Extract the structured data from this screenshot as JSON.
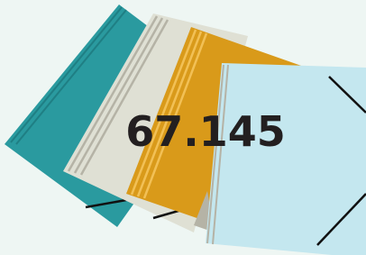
{
  "headline": "67.145"
}
